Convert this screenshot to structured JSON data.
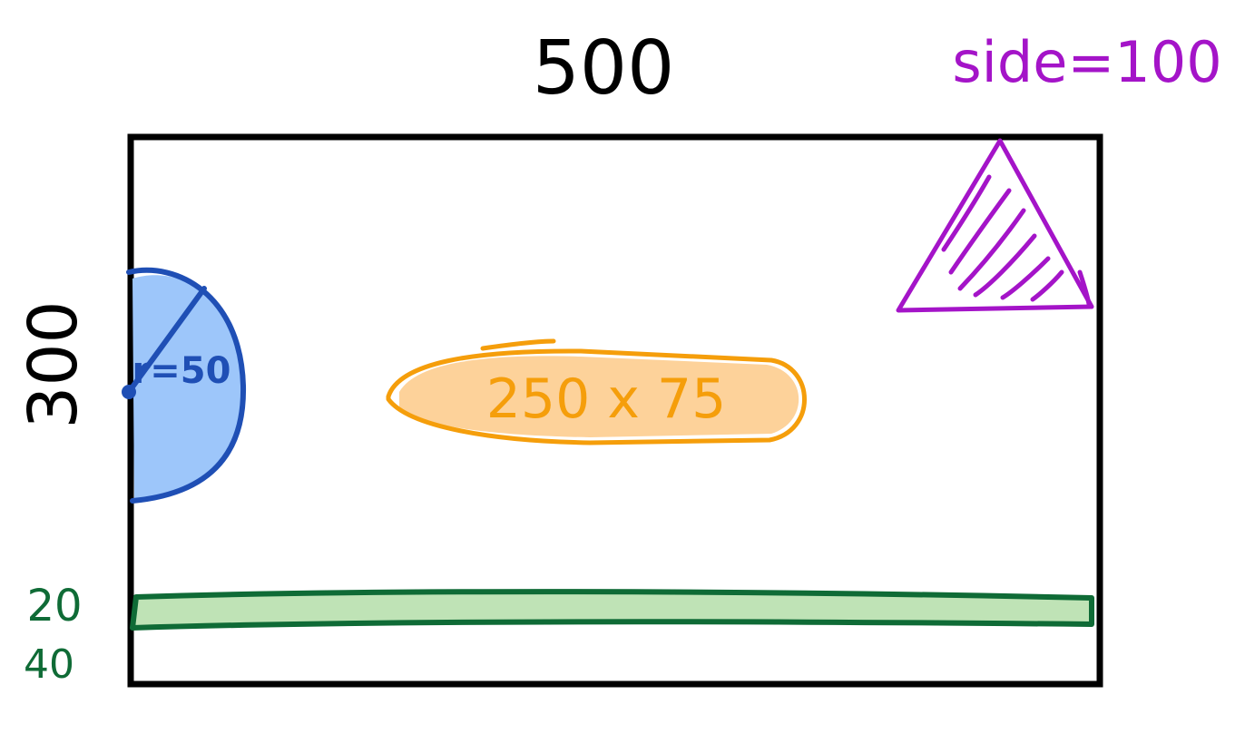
{
  "labels": {
    "width": "500",
    "height": "300",
    "triangle": "side=100",
    "radius": "r=50",
    "rect": "250 x 75",
    "bar_top": "20",
    "bar_bottom": "40"
  },
  "colors": {
    "frame": "#000000",
    "circle_fill": "#9dc6fa",
    "circle_stroke": "#1f4fb5",
    "ellipse_fill": "#fdd29a",
    "ellipse_stroke": "#f59e0b",
    "bar_fill": "#bfe3b6",
    "bar_stroke": "#0f6b36",
    "triangle": "#a414c8"
  }
}
